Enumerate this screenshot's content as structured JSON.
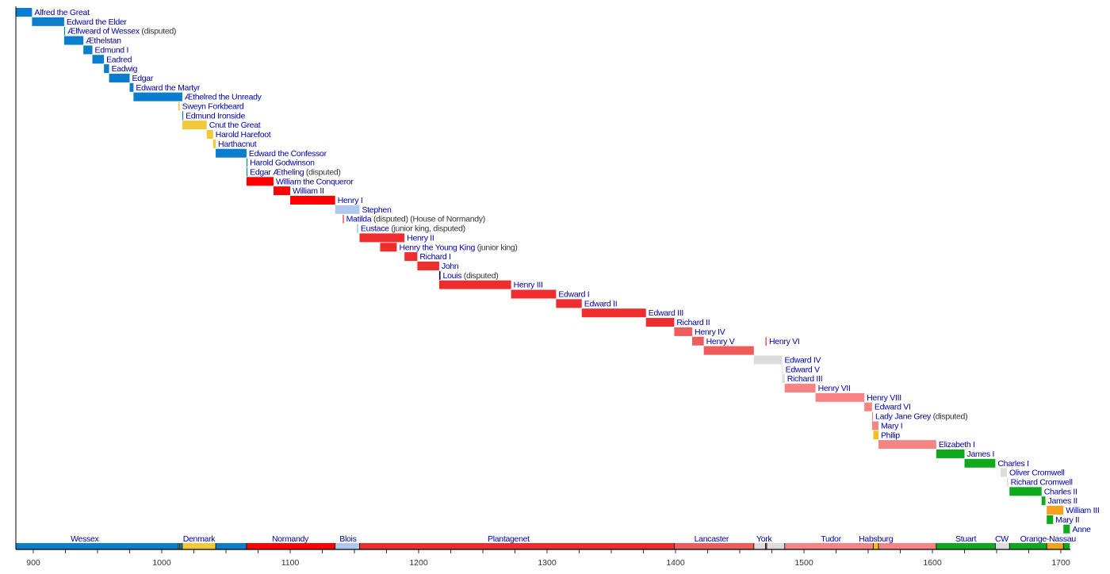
{
  "chart_data": {
    "type": "timeline",
    "title": "",
    "xlabel": "",
    "ylabel": "",
    "xlim": [
      887,
      1708
    ],
    "xticks": [
      900,
      1000,
      1100,
      1200,
      1300,
      1400,
      1500,
      1600,
      1700
    ],
    "minor_tick_step": 25,
    "grid": false,
    "colors": {
      "wessex": "#0a7dcc",
      "denmark": "#f0c93c",
      "normandy": "#ff0000",
      "blois": "#b0c8f0",
      "plantagenet": "#ee2e2e",
      "lancaster": "#ee5c5c",
      "york": "#dcdcdc",
      "tudor": "#f78484",
      "habsburg": "#f0c020",
      "stuart": "#10a81c",
      "cw": "#dcdcdc",
      "orange": "#f6a020",
      "label": "#0000aa",
      "axis": "#000000",
      "louis": "#000050"
    },
    "monarchs": [
      {
        "name": "Alfred the Great",
        "note": "",
        "start": 871,
        "end": 899,
        "house": "wessex"
      },
      {
        "name": "Edward the Elder",
        "note": "",
        "start": 899,
        "end": 924,
        "house": "wessex"
      },
      {
        "name": "Ælfweard of Wessex",
        "note": "(disputed)",
        "start": 924,
        "end": 924.1,
        "house": "wessex"
      },
      {
        "name": "Æthelstan",
        "note": "",
        "start": 924,
        "end": 939,
        "house": "wessex"
      },
      {
        "name": "Edmund I",
        "note": "",
        "start": 939,
        "end": 946,
        "house": "wessex"
      },
      {
        "name": "Eadred",
        "note": "",
        "start": 946,
        "end": 955,
        "house": "wessex"
      },
      {
        "name": "Eadwig",
        "note": "",
        "start": 955,
        "end": 959,
        "house": "wessex"
      },
      {
        "name": "Edgar",
        "note": "",
        "start": 959,
        "end": 975,
        "house": "wessex"
      },
      {
        "name": "Edward the Martyr",
        "note": "",
        "start": 975,
        "end": 978,
        "house": "wessex"
      },
      {
        "name": "Æthelred the Unready",
        "note": "",
        "start": 978,
        "end": 1016,
        "house": "wessex"
      },
      {
        "name": "Sweyn Forkbeard",
        "note": "",
        "start": 1013,
        "end": 1014,
        "house": "denmark"
      },
      {
        "name": "Edmund Ironside",
        "note": "",
        "start": 1016,
        "end": 1016.5,
        "house": "wessex"
      },
      {
        "name": "Cnut the Great",
        "note": "",
        "start": 1016,
        "end": 1035,
        "house": "denmark"
      },
      {
        "name": "Harold Harefoot",
        "note": "",
        "start": 1035,
        "end": 1040,
        "house": "denmark"
      },
      {
        "name": "Harthacnut",
        "note": "",
        "start": 1040,
        "end": 1042,
        "house": "denmark"
      },
      {
        "name": "Edward the Confessor",
        "note": "",
        "start": 1042,
        "end": 1066,
        "house": "wessex"
      },
      {
        "name": "Harold Godwinson",
        "note": "",
        "start": 1066,
        "end": 1066.5,
        "house": "wessex"
      },
      {
        "name": "Edgar Ætheling",
        "note": "(disputed)",
        "start": 1066,
        "end": 1066.5,
        "house": "wessex"
      },
      {
        "name": "William the Conqueror",
        "note": "",
        "start": 1066,
        "end": 1087,
        "house": "normandy"
      },
      {
        "name": "William II",
        "note": "",
        "start": 1087,
        "end": 1100,
        "house": "normandy"
      },
      {
        "name": "Henry I",
        "note": "",
        "start": 1100,
        "end": 1135,
        "house": "normandy"
      },
      {
        "name": "Stephen",
        "note": "",
        "start": 1135,
        "end": 1154,
        "house": "blois"
      },
      {
        "name": "Matilda",
        "note": "(disputed) (House of Normandy)",
        "start": 1141,
        "end": 1141.6,
        "house": "plantagenet"
      },
      {
        "name": "Eustace",
        "note": "(junior king, disputed)",
        "start": 1152,
        "end": 1153,
        "house": "blois"
      },
      {
        "name": "Henry II",
        "note": "",
        "start": 1154,
        "end": 1189,
        "house": "plantagenet"
      },
      {
        "name": "Henry the Young King",
        "note": "(junior king)",
        "start": 1170,
        "end": 1183,
        "house": "plantagenet"
      },
      {
        "name": "Richard I",
        "note": "",
        "start": 1189,
        "end": 1199,
        "house": "plantagenet"
      },
      {
        "name": "John",
        "note": "",
        "start": 1199,
        "end": 1216,
        "house": "plantagenet"
      },
      {
        "name": "Louis",
        "note": "(disputed)",
        "start": 1216,
        "end": 1217,
        "house": "louis"
      },
      {
        "name": "Henry III",
        "note": "",
        "start": 1216,
        "end": 1272,
        "house": "plantagenet"
      },
      {
        "name": "Edward I",
        "note": "",
        "start": 1272,
        "end": 1307,
        "house": "plantagenet"
      },
      {
        "name": "Edward II",
        "note": "",
        "start": 1307,
        "end": 1327,
        "house": "plantagenet"
      },
      {
        "name": "Edward III",
        "note": "",
        "start": 1327,
        "end": 1377,
        "house": "plantagenet"
      },
      {
        "name": "Richard II",
        "note": "",
        "start": 1377,
        "end": 1399,
        "house": "plantagenet"
      },
      {
        "name": "Henry IV",
        "note": "",
        "start": 1399,
        "end": 1413,
        "house": "lancaster"
      },
      {
        "name": "Henry V",
        "note": "",
        "start": 1413,
        "end": 1422,
        "house": "lancaster"
      },
      {
        "name": "Henry VI",
        "note": "",
        "start": 1422,
        "end": 1461,
        "house": "lancaster",
        "restored": [
          1470,
          1471
        ]
      },
      {
        "name": "Edward IV",
        "note": "",
        "start": 1461,
        "end": 1483,
        "house": "york"
      },
      {
        "name": "Edward V",
        "note": "",
        "start": 1483,
        "end": 1483.3,
        "house": "york"
      },
      {
        "name": "Richard III",
        "note": "",
        "start": 1483,
        "end": 1485,
        "house": "york"
      },
      {
        "name": "Henry VII",
        "note": "",
        "start": 1485,
        "end": 1509,
        "house": "tudor"
      },
      {
        "name": "Henry VIII",
        "note": "",
        "start": 1509,
        "end": 1547,
        "house": "tudor"
      },
      {
        "name": "Edward VI",
        "note": "",
        "start": 1547,
        "end": 1553,
        "house": "tudor"
      },
      {
        "name": "Lady Jane Grey",
        "note": "(disputed)",
        "start": 1553,
        "end": 1553.1,
        "house": "tudor"
      },
      {
        "name": "Mary I",
        "note": "",
        "start": 1553,
        "end": 1558,
        "house": "tudor"
      },
      {
        "name": "Philip",
        "note": "",
        "start": 1554,
        "end": 1558,
        "house": "habsburg"
      },
      {
        "name": "Elizabeth I",
        "note": "",
        "start": 1558,
        "end": 1603,
        "house": "tudor"
      },
      {
        "name": "James I",
        "note": "",
        "start": 1603,
        "end": 1625,
        "house": "stuart"
      },
      {
        "name": "Charles I",
        "note": "",
        "start": 1625,
        "end": 1649,
        "house": "stuart"
      },
      {
        "name": "Oliver Cromwell",
        "note": "",
        "start": 1653,
        "end": 1658,
        "house": "cw"
      },
      {
        "name": "Richard Cromwell",
        "note": "",
        "start": 1658,
        "end": 1659,
        "house": "cw"
      },
      {
        "name": "Charles II",
        "note": "",
        "start": 1660,
        "end": 1685,
        "house": "stuart"
      },
      {
        "name": "James II",
        "note": "",
        "start": 1685,
        "end": 1688,
        "house": "stuart"
      },
      {
        "name": "William III",
        "note": "",
        "start": 1689,
        "end": 1702,
        "house": "orange"
      },
      {
        "name": "Mary II",
        "note": "",
        "start": 1689,
        "end": 1694,
        "house": "stuart"
      },
      {
        "name": "Anne",
        "note": "",
        "start": 1702,
        "end": 1707,
        "house": "stuart"
      }
    ],
    "eras": [
      {
        "label": "Wessex",
        "start": 871,
        "end": 1013,
        "house": "wessex"
      },
      {
        "label": "",
        "start": 1013,
        "end": 1014,
        "house": "denmark"
      },
      {
        "label": "",
        "start": 1014,
        "end": 1016,
        "house": "wessex"
      },
      {
        "label": "Denmark",
        "start": 1016,
        "end": 1042,
        "house": "denmark"
      },
      {
        "label": "",
        "start": 1042,
        "end": 1066,
        "house": "wessex"
      },
      {
        "label": "Normandy",
        "start": 1066,
        "end": 1135,
        "house": "normandy"
      },
      {
        "label": "Blois",
        "start": 1135,
        "end": 1154,
        "house": "blois"
      },
      {
        "label": "Plantagenet",
        "start": 1154,
        "end": 1399,
        "house": "plantagenet"
      },
      {
        "label": "Lancaster",
        "start": 1399,
        "end": 1461,
        "house": "lancaster"
      },
      {
        "label": "York",
        "start": 1461,
        "end": 1470,
        "house": "york"
      },
      {
        "label": "",
        "start": 1470,
        "end": 1471,
        "house": "lancaster"
      },
      {
        "label": "",
        "start": 1471,
        "end": 1485,
        "house": "york"
      },
      {
        "label": "Tudor",
        "start": 1485,
        "end": 1554,
        "house": "tudor"
      },
      {
        "label": "Habsburg",
        "start": 1554,
        "end": 1558,
        "house": "habsburg"
      },
      {
        "label": "",
        "start": 1558,
        "end": 1603,
        "house": "tudor"
      },
      {
        "label": "Stuart",
        "start": 1603,
        "end": 1649,
        "house": "stuart"
      },
      {
        "label": "CW",
        "start": 1649,
        "end": 1660,
        "house": "cw"
      },
      {
        "label": "",
        "start": 1660,
        "end": 1689,
        "house": "stuart"
      },
      {
        "label": "Orange-Nassau",
        "start": 1689,
        "end": 1702,
        "house": "orange"
      },
      {
        "label": "",
        "start": 1702,
        "end": 1707,
        "house": "stuart"
      }
    ],
    "era_label_years": {
      "Wessex": 940,
      "Denmark": 1029,
      "Normandy": 1100,
      "Blois": 1145,
      "Plantagenet": 1270,
      "Lancaster": 1428,
      "York": 1469,
      "Tudor": 1521,
      "Habsburg": 1556,
      "Stuart": 1626,
      "CW": 1654,
      "Orange-Nassau": 1690
    }
  }
}
